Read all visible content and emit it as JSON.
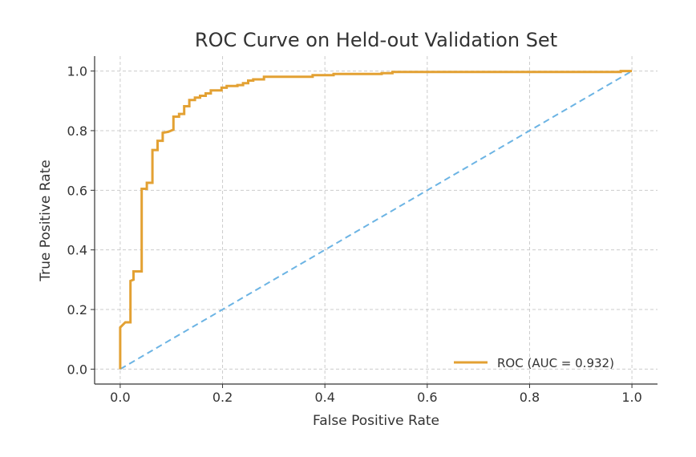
{
  "chart_data": {
    "type": "line",
    "title": "ROC Curve on Held-out Validation Set",
    "xlabel": "False Positive Rate",
    "ylabel": "True Positive Rate",
    "xlim": [
      -0.05,
      1.05
    ],
    "ylim": [
      -0.05,
      1.05
    ],
    "xticks": [
      "0.0",
      "0.2",
      "0.4",
      "0.6",
      "0.8",
      "1.0"
    ],
    "yticks": [
      "0.0",
      "0.2",
      "0.4",
      "0.6",
      "0.8",
      "1.0"
    ],
    "grid": true,
    "legend_position": "lower-right",
    "series": [
      {
        "name": "ROC (AUC = 0.932)",
        "color": "#E3A133",
        "style": "solid",
        "points": [
          [
            0,
            0
          ],
          [
            0,
            0.14
          ],
          [
            0.01,
            0.157
          ],
          [
            0.02,
            0.157
          ],
          [
            0.02,
            0.296
          ],
          [
            0.026,
            0.3
          ],
          [
            0.026,
            0.328
          ],
          [
            0.042,
            0.328
          ],
          [
            0.042,
            0.605
          ],
          [
            0.052,
            0.605
          ],
          [
            0.052,
            0.625
          ],
          [
            0.063,
            0.625
          ],
          [
            0.063,
            0.735
          ],
          [
            0.073,
            0.735
          ],
          [
            0.073,
            0.766
          ],
          [
            0.083,
            0.766
          ],
          [
            0.083,
            0.793
          ],
          [
            0.094,
            0.796
          ],
          [
            0.104,
            0.803
          ],
          [
            0.104,
            0.847
          ],
          [
            0.115,
            0.847
          ],
          [
            0.115,
            0.856
          ],
          [
            0.125,
            0.856
          ],
          [
            0.125,
            0.882
          ],
          [
            0.135,
            0.882
          ],
          [
            0.135,
            0.903
          ],
          [
            0.146,
            0.903
          ],
          [
            0.146,
            0.911
          ],
          [
            0.156,
            0.911
          ],
          [
            0.156,
            0.917
          ],
          [
            0.167,
            0.917
          ],
          [
            0.167,
            0.925
          ],
          [
            0.177,
            0.925
          ],
          [
            0.177,
            0.935
          ],
          [
            0.198,
            0.935
          ],
          [
            0.198,
            0.944
          ],
          [
            0.208,
            0.944
          ],
          [
            0.208,
            0.95
          ],
          [
            0.229,
            0.95
          ],
          [
            0.229,
            0.953
          ],
          [
            0.24,
            0.953
          ],
          [
            0.24,
            0.959
          ],
          [
            0.25,
            0.959
          ],
          [
            0.25,
            0.968
          ],
          [
            0.26,
            0.968
          ],
          [
            0.26,
            0.972
          ],
          [
            0.281,
            0.972
          ],
          [
            0.281,
            0.981
          ],
          [
            0.376,
            0.981
          ],
          [
            0.376,
            0.986
          ],
          [
            0.417,
            0.986
          ],
          [
            0.417,
            0.99
          ],
          [
            0.511,
            0.99
          ],
          [
            0.511,
            0.993
          ],
          [
            0.532,
            0.993
          ],
          [
            0.532,
            0.997
          ],
          [
            0.978,
            0.997
          ],
          [
            0.978,
            1.0
          ],
          [
            1.0,
            1.0
          ]
        ]
      },
      {
        "color": "#6CB4E4",
        "style": "dashed",
        "points": [
          [
            0,
            0
          ],
          [
            1,
            1
          ]
        ]
      }
    ]
  }
}
